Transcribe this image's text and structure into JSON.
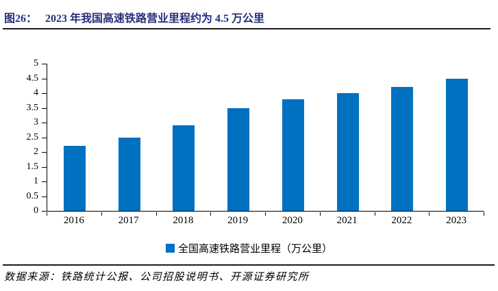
{
  "figure": {
    "label": "图26：",
    "title": "2023 年我国高速铁路营业里程约为 4.5 万公里"
  },
  "chart_data": {
    "type": "bar",
    "categories": [
      "2016",
      "2017",
      "2018",
      "2019",
      "2020",
      "2021",
      "2022",
      "2023"
    ],
    "values": [
      2.2,
      2.5,
      2.9,
      3.5,
      3.8,
      4.0,
      4.2,
      4.5
    ],
    "series_name": "全国高速铁路营业里程（万公里）",
    "title": "",
    "xlabel": "",
    "ylabel": "",
    "ylim": [
      0,
      5
    ],
    "ytick_labels": [
      "5",
      "4.5",
      "4",
      "3.5",
      "3",
      "2.5",
      "2",
      "1.5",
      "1",
      "0.5",
      "0"
    ],
    "grid": false,
    "legend": [
      "全国高速铁路营业里程（万公里）"
    ],
    "legend_position": "bottom",
    "bar_color": "#0070C0"
  },
  "source": {
    "text": "数据来源：铁路统计公报、公司招股说明书、开源证券研究所"
  },
  "colors": {
    "title_text": "#272E7D",
    "bar": "#0070C0",
    "axis": "#000000",
    "rule": "#1a1a1a"
  }
}
